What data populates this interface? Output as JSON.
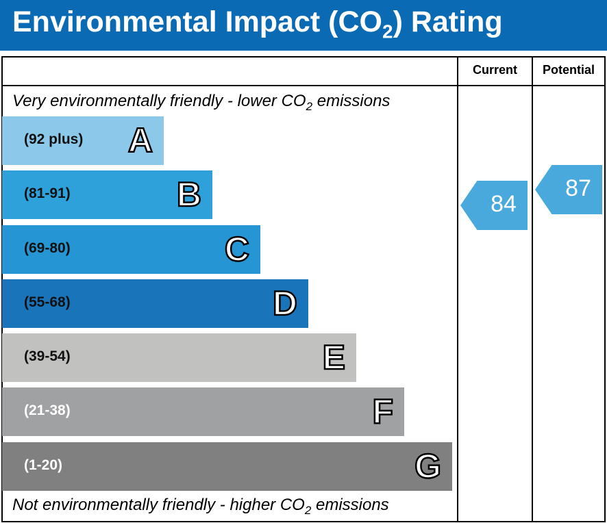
{
  "title": "Environmental Impact (CO",
  "title_sub": "2",
  "title_end": ") Rating",
  "columns": {
    "current": "Current",
    "potential": "Potential"
  },
  "top_note": {
    "pre": "Very environmentally friendly - lower CO",
    "sub": "2",
    "post": " emissions"
  },
  "bottom_note": {
    "pre": "Not environmentally friendly - higher CO",
    "sub": "2",
    "post": " emissions"
  },
  "chart_data": {
    "type": "bar",
    "bands": [
      {
        "letter": "A",
        "range": "(92 plus)",
        "color": "#8cc8ea"
      },
      {
        "letter": "B",
        "range": "(81-91)",
        "color": "#2ea1db"
      },
      {
        "letter": "C",
        "range": "(69-80)",
        "color": "#2596d3"
      },
      {
        "letter": "D",
        "range": "(55-68)",
        "color": "#1a74ba"
      },
      {
        "letter": "E",
        "range": "(39-54)",
        "color": "#c1c1c0"
      },
      {
        "letter": "F",
        "range": "(21-38)",
        "color": "#a0a1a3"
      },
      {
        "letter": "G",
        "range": "(1-20)",
        "color": "#808081"
      }
    ],
    "current": {
      "value": "84",
      "band": "B",
      "color": "#4aa9dc"
    },
    "potential": {
      "value": "87",
      "band": "B",
      "color": "#4aa9dc"
    }
  }
}
